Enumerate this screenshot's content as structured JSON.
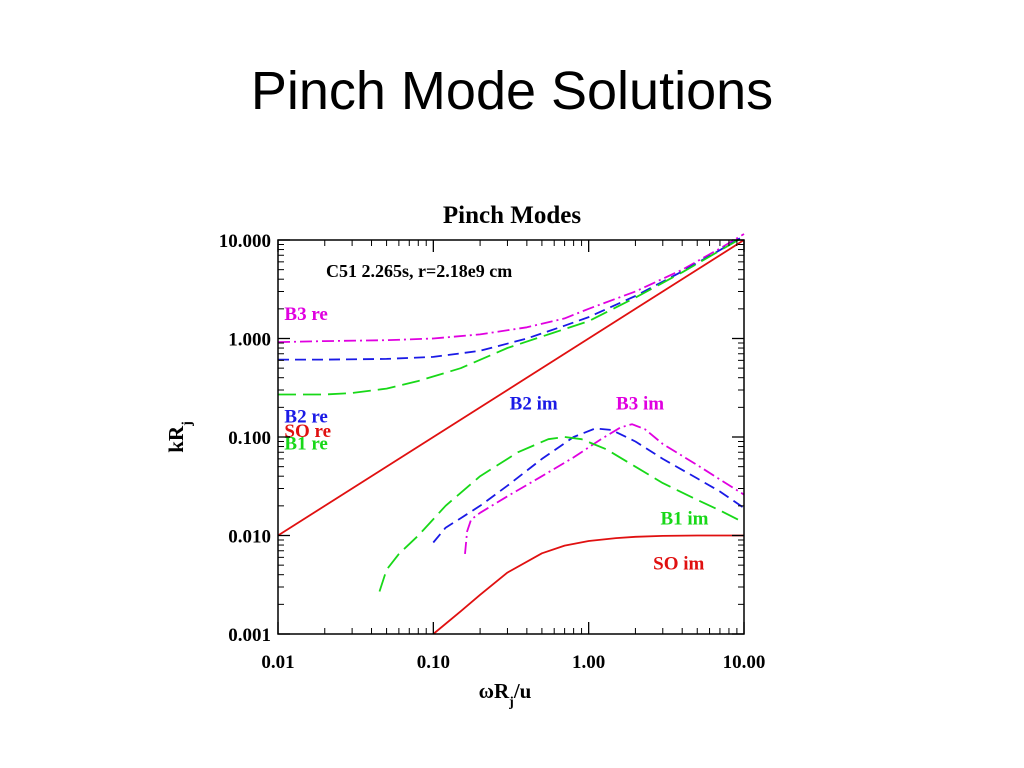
{
  "slide": {
    "title": "Pinch Mode Solutions"
  },
  "chart_data": {
    "type": "line",
    "title": "Pinch Modes",
    "annotation": "C51 2.265s, r=2.18e9 cm",
    "xlabel": {
      "main": "ωR",
      "sub": "j",
      "tail": "/u"
    },
    "ylabel": {
      "main": "kR",
      "sub": "j"
    },
    "x_scale": "log",
    "y_scale": "log",
    "xlim": [
      0.01,
      10
    ],
    "ylim": [
      0.001,
      10
    ],
    "x_ticks": [
      {
        "value": 0.01,
        "label": "0.01"
      },
      {
        "value": 0.1,
        "label": "0.10"
      },
      {
        "value": 1,
        "label": "1.00"
      },
      {
        "value": 10,
        "label": "10.00"
      }
    ],
    "y_ticks": [
      {
        "value": 0.001,
        "label": "0.001"
      },
      {
        "value": 0.01,
        "label": "0.010"
      },
      {
        "value": 0.1,
        "label": "0.100"
      },
      {
        "value": 1,
        "label": "1.000"
      },
      {
        "value": 10,
        "label": "10.000"
      }
    ],
    "series": [
      {
        "name": "B3 re",
        "color": "#e000e0",
        "dash": "dashdot",
        "label_at": [
          0.011,
          1.55
        ],
        "points": [
          [
            0.01,
            0.92
          ],
          [
            0.02,
            0.94
          ],
          [
            0.05,
            0.96
          ],
          [
            0.1,
            1.0
          ],
          [
            0.2,
            1.1
          ],
          [
            0.4,
            1.3
          ],
          [
            0.7,
            1.6
          ],
          [
            1,
            2.0
          ],
          [
            2,
            3.0
          ],
          [
            4,
            5.0
          ],
          [
            7,
            8.2
          ],
          [
            10,
            11.5
          ]
        ]
      },
      {
        "name": "B2 re",
        "color": "#1a1ae6",
        "dash": "dash",
        "label_at": [
          0.011,
          0.14
        ],
        "points": [
          [
            0.01,
            0.61
          ],
          [
            0.02,
            0.61
          ],
          [
            0.05,
            0.62
          ],
          [
            0.1,
            0.65
          ],
          [
            0.2,
            0.75
          ],
          [
            0.4,
            1.0
          ],
          [
            0.7,
            1.35
          ],
          [
            1,
            1.65
          ],
          [
            2,
            2.7
          ],
          [
            4,
            4.8
          ],
          [
            7,
            7.9
          ],
          [
            10,
            11.0
          ]
        ]
      },
      {
        "name": "B1 re",
        "color": "#18d818",
        "dash": "longdash",
        "label_at": [
          0.011,
          0.075
        ],
        "points": [
          [
            0.01,
            0.27
          ],
          [
            0.02,
            0.27
          ],
          [
            0.03,
            0.28
          ],
          [
            0.05,
            0.31
          ],
          [
            0.08,
            0.37
          ],
          [
            0.15,
            0.5
          ],
          [
            0.3,
            0.8
          ],
          [
            0.6,
            1.15
          ],
          [
            1,
            1.5
          ],
          [
            2,
            2.6
          ],
          [
            4,
            4.7
          ],
          [
            7,
            7.8
          ],
          [
            10,
            10.8
          ]
        ]
      },
      {
        "name": "SO re",
        "color": "#e01010",
        "dash": "solid",
        "label_at": [
          0.011,
          0.1
        ],
        "points": [
          [
            0.01,
            0.01
          ],
          [
            10,
            10
          ]
        ]
      },
      {
        "name": "B2 im",
        "color": "#1a1ae6",
        "dash": "dash",
        "label_at": [
          0.31,
          0.19
        ],
        "points": [
          [
            0.1,
            0.0085
          ],
          [
            0.12,
            0.012
          ],
          [
            0.15,
            0.015
          ],
          [
            0.2,
            0.02
          ],
          [
            0.3,
            0.032
          ],
          [
            0.5,
            0.06
          ],
          [
            0.8,
            0.1
          ],
          [
            1.1,
            0.122
          ],
          [
            1.4,
            0.118
          ],
          [
            2,
            0.09
          ],
          [
            3,
            0.06
          ],
          [
            5,
            0.038
          ],
          [
            7,
            0.028
          ],
          [
            10,
            0.019
          ]
        ]
      },
      {
        "name": "B3 im",
        "color": "#e000e0",
        "dash": "dashdot",
        "label_at": [
          1.5,
          0.19
        ],
        "points": [
          [
            0.16,
            0.0065
          ],
          [
            0.165,
            0.011
          ],
          [
            0.175,
            0.0145
          ],
          [
            0.2,
            0.017
          ],
          [
            0.3,
            0.025
          ],
          [
            0.5,
            0.04
          ],
          [
            0.8,
            0.062
          ],
          [
            1.2,
            0.095
          ],
          [
            1.6,
            0.125
          ],
          [
            1.9,
            0.135
          ],
          [
            2.3,
            0.12
          ],
          [
            3,
            0.085
          ],
          [
            5,
            0.052
          ],
          [
            7,
            0.037
          ],
          [
            10,
            0.026
          ]
        ]
      },
      {
        "name": "B1 im",
        "color": "#18d818",
        "dash": "longdash",
        "label_at": [
          2.9,
          0.013
        ],
        "points": [
          [
            0.045,
            0.0027
          ],
          [
            0.05,
            0.0045
          ],
          [
            0.06,
            0.0065
          ],
          [
            0.08,
            0.01
          ],
          [
            0.12,
            0.02
          ],
          [
            0.2,
            0.04
          ],
          [
            0.35,
            0.07
          ],
          [
            0.55,
            0.095
          ],
          [
            0.7,
            0.1
          ],
          [
            0.9,
            0.095
          ],
          [
            1.3,
            0.075
          ],
          [
            2,
            0.05
          ],
          [
            3,
            0.034
          ],
          [
            5,
            0.023
          ],
          [
            7,
            0.018
          ],
          [
            10,
            0.0135
          ]
        ]
      },
      {
        "name": "SO im",
        "color": "#e01010",
        "dash": "solid",
        "label_at": [
          2.6,
          0.0045
        ],
        "points": [
          [
            0.1,
            0.001
          ],
          [
            0.15,
            0.0017
          ],
          [
            0.2,
            0.0025
          ],
          [
            0.3,
            0.0042
          ],
          [
            0.5,
            0.0066
          ],
          [
            0.7,
            0.0079
          ],
          [
            1,
            0.0088
          ],
          [
            1.5,
            0.0094
          ],
          [
            2,
            0.0097
          ],
          [
            3,
            0.0099
          ],
          [
            5,
            0.01
          ],
          [
            10,
            0.01
          ]
        ]
      }
    ]
  }
}
